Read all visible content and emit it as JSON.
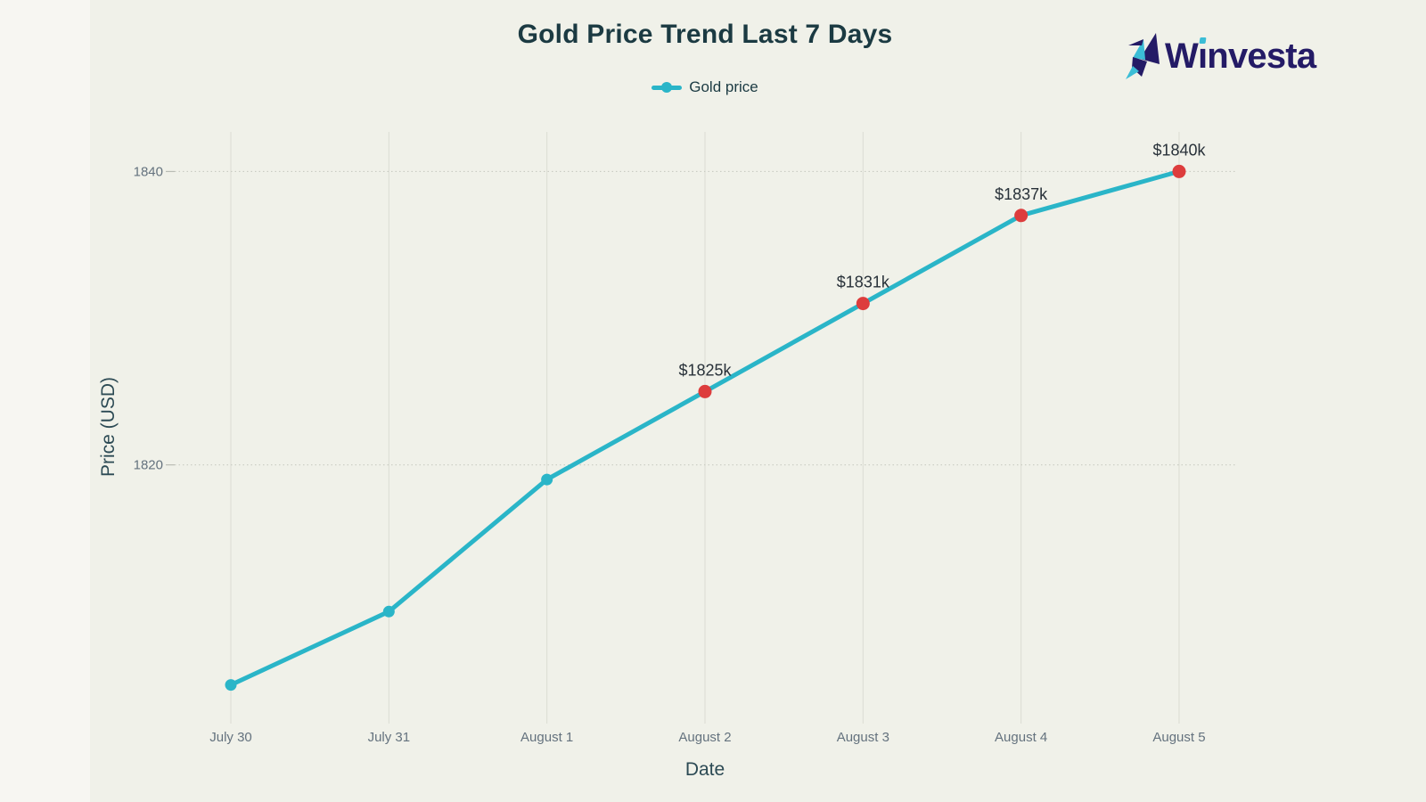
{
  "header": {
    "title": "Gold Price Trend Last 7 Days"
  },
  "legend": {
    "label": "Gold price"
  },
  "logo": {
    "brand": "Winvesta"
  },
  "axes": {
    "x_title": "Date",
    "y_title": "Price (USD)"
  },
  "chart_data": {
    "type": "line",
    "title": "Gold Price Trend Last 7 Days",
    "xlabel": "Date",
    "ylabel": "Price (USD)",
    "categories": [
      "July 30",
      "July 31",
      "August 1",
      "August 2",
      "August 3",
      "August 4",
      "August 5"
    ],
    "series": [
      {
        "name": "Gold price",
        "values": [
          1805,
          1810,
          1819,
          1825,
          1831,
          1837,
          1840
        ]
      }
    ],
    "point_labels": [
      "",
      "",
      "",
      "$1825k",
      "$1831k",
      "$1837k",
      "$1840k"
    ],
    "highlighted_points": [
      3,
      4,
      5,
      6
    ],
    "yticks": [
      1840,
      1820
    ],
    "ylim": [
      1803.7,
      1842.7
    ],
    "grid": true,
    "legend_position": "top-center"
  },
  "colors": {
    "background": "#f0f1e9",
    "left_band": "#f7f6f2",
    "line": "#2ab5c8",
    "point_highlight": "#dd3d3d",
    "grid": "#dbdcd3",
    "tick_text": "#64727e",
    "axis_title_text": "#2c4a54",
    "annotation_text": "#283139",
    "title_text": "#1b3a42",
    "brand_indigo": "#241b66",
    "brand_teal": "#3bbdd6"
  }
}
